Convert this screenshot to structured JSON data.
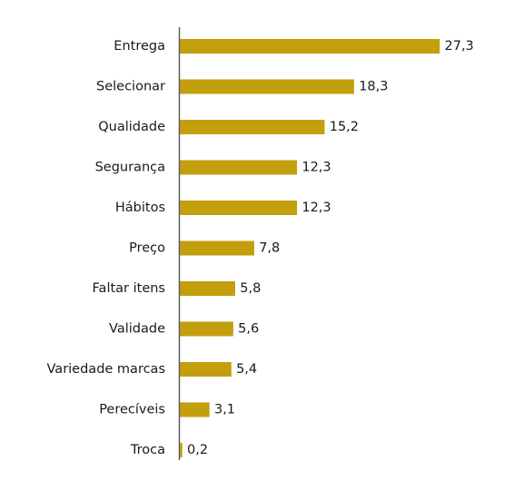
{
  "chart_data": {
    "type": "bar",
    "orientation": "horizontal",
    "categories": [
      "Entrega",
      "Selecionar",
      "Qualidade",
      "Segurança",
      "Hábitos",
      "Preço",
      "Faltar itens",
      "Validade",
      "Variedade marcas",
      "Perecíveis",
      "Troca"
    ],
    "values": [
      27.3,
      18.3,
      15.2,
      12.3,
      12.3,
      7.8,
      5.8,
      5.6,
      5.4,
      3.1,
      0.2
    ],
    "value_labels": [
      "27,3",
      "18,3",
      "15,2",
      "12,3",
      "12,3",
      "7,8",
      "5,8",
      "5,6",
      "5,4",
      "3,1",
      "0,2"
    ],
    "title": "",
    "xlabel": "",
    "ylabel": "",
    "xlim": [
      0,
      27.3
    ],
    "grid": false,
    "legend": "none",
    "bar_color": "#c39e0d",
    "axis_color": "#555555"
  }
}
